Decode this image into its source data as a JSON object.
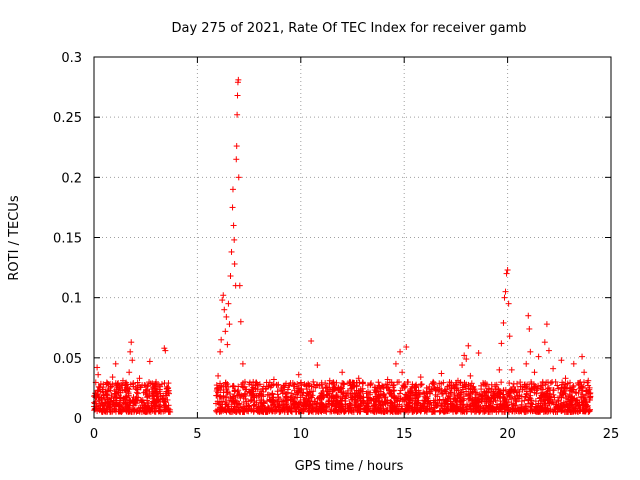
{
  "chart_data": {
    "type": "scatter",
    "title": "Day 275 of 2021, Rate Of TEC Index for receiver gamb",
    "xlabel": "GPS time / hours",
    "ylabel": "ROTI / TECUs",
    "xlim": [
      0,
      25
    ],
    "ylim": [
      0,
      0.3
    ],
    "x_ticks": [
      0,
      5,
      10,
      15,
      20,
      25
    ],
    "x_tick_labels": [
      "0",
      "5",
      "10",
      "15",
      "20",
      "25"
    ],
    "y_ticks": [
      0,
      0.05,
      0.1,
      0.15,
      0.2,
      0.25,
      0.3
    ],
    "y_tick_labels": [
      "0",
      "0.05",
      "0.1",
      "0.15",
      "0.2",
      "0.25",
      "0.3"
    ],
    "grid": true,
    "marker": "+",
    "color": "#ff0000",
    "series": [
      {
        "name": "ROTI",
        "points": [
          [
            0.05,
            0.012
          ],
          [
            0.1,
            0.018
          ],
          [
            0.15,
            0.042
          ],
          [
            0.2,
            0.036
          ],
          [
            0.3,
            0.022
          ],
          [
            0.35,
            0.015
          ],
          [
            0.45,
            0.028
          ],
          [
            0.5,
            0.01
          ],
          [
            0.6,
            0.019
          ],
          [
            0.7,
            0.024
          ],
          [
            0.8,
            0.014
          ],
          [
            0.9,
            0.034
          ],
          [
            1.0,
            0.02
          ],
          [
            1.05,
            0.045
          ],
          [
            1.1,
            0.013
          ],
          [
            1.2,
            0.026
          ],
          [
            1.3,
            0.017
          ],
          [
            1.4,
            0.031
          ],
          [
            1.5,
            0.012
          ],
          [
            1.6,
            0.023
          ],
          [
            1.7,
            0.038
          ],
          [
            1.75,
            0.055
          ],
          [
            1.8,
            0.063
          ],
          [
            1.85,
            0.048
          ],
          [
            1.9,
            0.029
          ],
          [
            2.0,
            0.016
          ],
          [
            2.1,
            0.025
          ],
          [
            2.2,
            0.033
          ],
          [
            2.3,
            0.014
          ],
          [
            2.4,
            0.021
          ],
          [
            2.5,
            0.027
          ],
          [
            2.6,
            0.018
          ],
          [
            2.7,
            0.047
          ],
          [
            2.8,
            0.024
          ],
          [
            2.9,
            0.013
          ],
          [
            3.0,
            0.03
          ],
          [
            3.1,
            0.019
          ],
          [
            3.2,
            0.026
          ],
          [
            3.3,
            0.016
          ],
          [
            3.4,
            0.058
          ],
          [
            3.45,
            0.056
          ],
          [
            3.5,
            0.022
          ],
          [
            3.55,
            0.015
          ],
          [
            3.6,
            0.029
          ],
          [
            5.9,
            0.012
          ],
          [
            5.95,
            0.024
          ],
          [
            6.0,
            0.035
          ],
          [
            6.1,
            0.055
          ],
          [
            6.15,
            0.065
          ],
          [
            6.2,
            0.098
          ],
          [
            6.25,
            0.102
          ],
          [
            6.3,
            0.09
          ],
          [
            6.35,
            0.072
          ],
          [
            6.4,
            0.084
          ],
          [
            6.45,
            0.061
          ],
          [
            6.5,
            0.095
          ],
          [
            6.55,
            0.078
          ],
          [
            6.6,
            0.118
          ],
          [
            6.65,
            0.138
          ],
          [
            6.7,
            0.175
          ],
          [
            6.72,
            0.19
          ],
          [
            6.75,
            0.16
          ],
          [
            6.78,
            0.148
          ],
          [
            6.8,
            0.128
          ],
          [
            6.85,
            0.11
          ],
          [
            6.88,
            0.215
          ],
          [
            6.9,
            0.226
          ],
          [
            6.92,
            0.252
          ],
          [
            6.94,
            0.268
          ],
          [
            6.96,
            0.279
          ],
          [
            6.98,
            0.281
          ],
          [
            7.0,
            0.2
          ],
          [
            7.05,
            0.11
          ],
          [
            7.1,
            0.08
          ],
          [
            7.2,
            0.045
          ],
          [
            7.3,
            0.03
          ],
          [
            7.5,
            0.022
          ],
          [
            7.7,
            0.017
          ],
          [
            7.9,
            0.028
          ],
          [
            8.1,
            0.015
          ],
          [
            8.3,
            0.024
          ],
          [
            8.5,
            0.019
          ],
          [
            8.7,
            0.032
          ],
          [
            8.9,
            0.014
          ],
          [
            9.1,
            0.023
          ],
          [
            9.3,
            0.018
          ],
          [
            9.5,
            0.029
          ],
          [
            9.7,
            0.016
          ],
          [
            9.9,
            0.036
          ],
          [
            10.1,
            0.021
          ],
          [
            10.3,
            0.027
          ],
          [
            10.5,
            0.064
          ],
          [
            10.6,
            0.03
          ],
          [
            10.8,
            0.044
          ],
          [
            11.0,
            0.018
          ],
          [
            11.2,
            0.025
          ],
          [
            11.4,
            0.031
          ],
          [
            11.6,
            0.016
          ],
          [
            11.8,
            0.023
          ],
          [
            12.0,
            0.038
          ],
          [
            12.2,
            0.019
          ],
          [
            12.4,
            0.027
          ],
          [
            12.6,
            0.015
          ],
          [
            12.8,
            0.033
          ],
          [
            13.0,
            0.022
          ],
          [
            13.2,
            0.017
          ],
          [
            13.4,
            0.029
          ],
          [
            13.6,
            0.014
          ],
          [
            13.8,
            0.026
          ],
          [
            14.0,
            0.02
          ],
          [
            14.2,
            0.032
          ],
          [
            14.4,
            0.018
          ],
          [
            14.6,
            0.045
          ],
          [
            14.8,
            0.055
          ],
          [
            14.9,
            0.038
          ],
          [
            15.0,
            0.026
          ],
          [
            15.1,
            0.059
          ],
          [
            15.2,
            0.016
          ],
          [
            15.4,
            0.028
          ],
          [
            15.6,
            0.021
          ],
          [
            15.8,
            0.034
          ],
          [
            16.0,
            0.015
          ],
          [
            16.2,
            0.024
          ],
          [
            16.4,
            0.03
          ],
          [
            16.6,
            0.018
          ],
          [
            16.8,
            0.037
          ],
          [
            17.0,
            0.022
          ],
          [
            17.2,
            0.027
          ],
          [
            17.4,
            0.016
          ],
          [
            17.6,
            0.031
          ],
          [
            17.8,
            0.044
          ],
          [
            17.9,
            0.052
          ],
          [
            18.0,
            0.049
          ],
          [
            18.1,
            0.06
          ],
          [
            18.2,
            0.035
          ],
          [
            18.4,
            0.024
          ],
          [
            18.6,
            0.054
          ],
          [
            18.8,
            0.019
          ],
          [
            19.0,
            0.028
          ],
          [
            19.2,
            0.017
          ],
          [
            19.4,
            0.026
          ],
          [
            19.6,
            0.04
          ],
          [
            19.7,
            0.062
          ],
          [
            19.8,
            0.079
          ],
          [
            19.85,
            0.1
          ],
          [
            19.9,
            0.105
          ],
          [
            19.95,
            0.12
          ],
          [
            20.0,
            0.123
          ],
          [
            20.05,
            0.095
          ],
          [
            20.1,
            0.068
          ],
          [
            20.2,
            0.04
          ],
          [
            20.3,
            0.022
          ],
          [
            20.5,
            0.016
          ],
          [
            20.7,
            0.026
          ],
          [
            20.9,
            0.045
          ],
          [
            21.0,
            0.085
          ],
          [
            21.05,
            0.074
          ],
          [
            21.1,
            0.055
          ],
          [
            21.3,
            0.038
          ],
          [
            21.5,
            0.051
          ],
          [
            21.7,
            0.03
          ],
          [
            21.8,
            0.063
          ],
          [
            21.9,
            0.078
          ],
          [
            22.0,
            0.056
          ],
          [
            22.2,
            0.041
          ],
          [
            22.4,
            0.027
          ],
          [
            22.6,
            0.048
          ],
          [
            22.8,
            0.033
          ],
          [
            23.0,
            0.019
          ],
          [
            23.2,
            0.045
          ],
          [
            23.4,
            0.029
          ],
          [
            23.6,
            0.051
          ],
          [
            23.7,
            0.038
          ],
          [
            23.8,
            0.022
          ],
          [
            23.9,
            0.031
          ],
          [
            24.0,
            0.018
          ]
        ],
        "dense_bands": [
          {
            "x_start": 0.0,
            "x_end": 3.7,
            "y_min": 0.005,
            "y_max": 0.03
          },
          {
            "x_start": 5.9,
            "x_end": 24.0,
            "y_min": 0.005,
            "y_max": 0.03
          }
        ]
      }
    ]
  }
}
